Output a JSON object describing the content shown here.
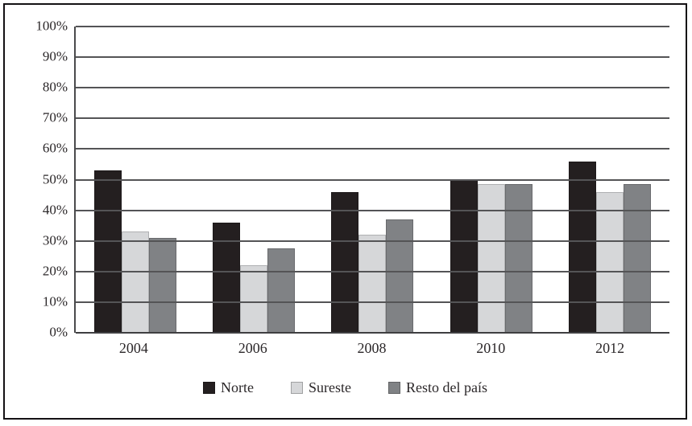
{
  "chart_data": {
    "type": "bar",
    "title": "",
    "xlabel": "",
    "ylabel": "",
    "categories": [
      "2004",
      "2006",
      "2008",
      "2010",
      "2012"
    ],
    "series": [
      {
        "name": "Norte",
        "color": "#241f20",
        "values": [
          53,
          36,
          46,
          50,
          56
        ]
      },
      {
        "name": "Sureste",
        "color": "#d6d7d9",
        "values": [
          33,
          22,
          32,
          48.5,
          46
        ]
      },
      {
        "name": "Resto del país",
        "color": "#808285",
        "values": [
          31,
          27.5,
          37,
          48.5,
          48.5
        ]
      }
    ],
    "ylim": [
      0,
      100
    ],
    "y_ticks": [
      "100%",
      "90%",
      "80%",
      "70%",
      "60%",
      "50%",
      "40%",
      "30%",
      "20%",
      "10%",
      "0%"
    ],
    "grid": true,
    "legend_position": "bottom"
  },
  "style": {
    "gridline_color": "#545456",
    "frame_border_color": "#141114",
    "text_color": "#2b2729"
  }
}
